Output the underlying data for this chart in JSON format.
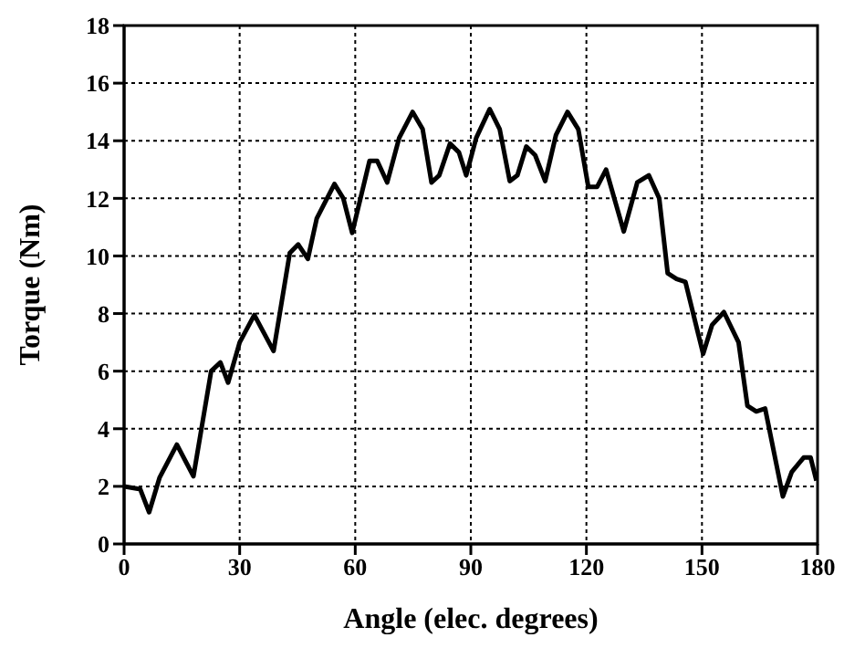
{
  "chart_data": {
    "type": "line",
    "xlabel": "Angle (elec. degrees)",
    "ylabel": "Torque (Nm)",
    "xlim": [
      0,
      180
    ],
    "xticks": [
      0,
      30,
      60,
      90,
      120,
      150,
      180
    ],
    "ylim": [
      0,
      18
    ],
    "yticks": [
      0,
      2,
      4,
      6,
      8,
      10,
      12,
      14,
      16,
      18
    ],
    "grid": true,
    "legend": false,
    "marker": "none",
    "line_style": "solid",
    "series": [
      {
        "color": "#000000",
        "x": [
          0,
          4.2,
          6.5,
          9.2,
          13.7,
          18,
          22.6,
          25,
          27,
          30,
          33.8,
          38.8,
          43,
          45.2,
          47.7,
          50,
          54.6,
          56.9,
          59.2,
          63.7,
          65.7,
          68.3,
          71.4,
          74.9,
          77.5,
          79.8,
          81.8,
          84.6,
          86.9,
          88.8,
          91.4,
          94.9,
          97.5,
          100.1,
          102.1,
          104.4,
          106.7,
          109.3,
          112.1,
          115.1,
          117.9,
          120.5,
          122.8,
          125.1,
          129.7,
          133.2,
          136.2,
          138.9,
          141.1,
          143.4,
          145.7,
          150.3,
          152.6,
          155.7,
          159.5,
          161.8,
          164.1,
          166.4,
          171,
          173.3,
          176.4,
          178.2,
          179.7
        ],
        "values": [
          2.0,
          1.9,
          1.1,
          2.3,
          3.45,
          2.35,
          6.0,
          6.3,
          5.6,
          7.0,
          7.95,
          6.7,
          10.1,
          10.4,
          9.9,
          11.3,
          12.5,
          12.0,
          10.8,
          13.3,
          13.3,
          12.55,
          14.1,
          15.0,
          14.4,
          12.55,
          12.8,
          13.9,
          13.6,
          12.8,
          14.1,
          15.1,
          14.4,
          12.6,
          12.8,
          13.8,
          13.5,
          12.6,
          14.2,
          15.0,
          14.4,
          12.4,
          12.4,
          13.0,
          10.85,
          12.55,
          12.8,
          12.0,
          9.4,
          9.2,
          9.1,
          6.6,
          7.6,
          8.05,
          7.0,
          4.8,
          4.6,
          4.7,
          1.65,
          2.5,
          3.0,
          3.0,
          2.2
        ]
      }
    ]
  }
}
